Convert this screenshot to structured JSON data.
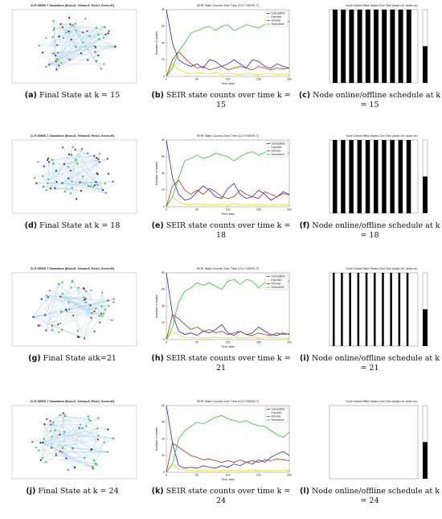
{
  "panels": [
    {
      "label": "(a)",
      "caption": "Final State at k = 15",
      "chart": {
        "type": "network",
        "title": "CLP-SEIRS-T Simulation (Blue=S, Yellow=E, Red=I, Green=R)"
      }
    },
    {
      "label": "(b)",
      "caption": "SEIR state counts over time k = 15",
      "chart": {
        "type": "line",
        "title": "SEIR State Counts Over Time (CLP-SEIRS-T)",
        "x_label": "Time step",
        "y_label": "Number of nodes",
        "x": [
          0,
          10,
          20,
          30,
          40,
          50,
          60,
          70,
          80,
          90,
          100,
          110,
          120,
          130,
          140,
          150,
          160,
          170,
          180,
          190,
          200
        ],
        "xlim": [
          0,
          200
        ],
        "xticks": [
          0,
          50,
          100,
          150,
          200
        ],
        "ylim": [
          0,
          80
        ],
        "yticks": [
          0,
          20,
          40,
          60,
          80
        ],
        "series": [
          {
            "name": "Susceptible",
            "color": "#1f1fe0",
            "values": [
              80,
              40,
              20,
              15,
              12,
              15,
              10,
              20,
              18,
              12,
              15,
              20,
              15,
              10,
              20,
              18,
              12,
              10,
              15,
              12,
              10
            ]
          },
          {
            "name": "Exposed",
            "color": "#e8e000",
            "values": [
              0,
              15,
              8,
              5,
              3,
              5,
              4,
              3,
              5,
              2,
              4,
              3,
              2,
              4,
              3,
              2,
              3,
              4,
              2,
              3,
              2
            ]
          },
          {
            "name": "Infected",
            "color": "#b03010",
            "values": [
              0,
              20,
              30,
              22,
              15,
              10,
              12,
              8,
              10,
              12,
              8,
              10,
              12,
              10,
              8,
              12,
              10,
              8,
              10,
              9,
              10
            ]
          },
          {
            "name": "Recovered",
            "color": "#22c822",
            "values": [
              0,
              10,
              30,
              40,
              52,
              55,
              58,
              60,
              55,
              60,
              62,
              55,
              58,
              62,
              60,
              58,
              62,
              66,
              62,
              64,
              66
            ]
          }
        ]
      }
    },
    {
      "label": "(c)",
      "caption": "Node online/offline schedule at k = 15",
      "chart": {
        "type": "schedule",
        "title": "Node Online/Offline States Over Time (black=off, white=on)"
      }
    },
    {
      "label": "(d)",
      "caption": "Final State at k = 18",
      "chart": {
        "type": "network",
        "title": "CLP-SEIRS-T Simulation (Blue=S, Yellow=E, Red=I, Green=R)"
      }
    },
    {
      "label": "(e)",
      "caption": "SEIR state counts over time k = 18",
      "chart": {
        "type": "line",
        "title": "SEIR State Counts Over Time (CLP-SEIRS-T)",
        "x_label": "Time step",
        "y_label": "Number of nodes",
        "x": [
          0,
          10,
          20,
          30,
          40,
          50,
          60,
          70,
          80,
          90,
          100,
          110,
          120,
          130,
          140,
          150,
          160,
          170,
          180,
          190,
          200
        ],
        "xlim": [
          0,
          200
        ],
        "xticks": [
          0,
          50,
          100,
          150,
          200
        ],
        "ylim": [
          0,
          80
        ],
        "yticks": [
          0,
          20,
          40,
          60,
          80
        ],
        "series": [
          {
            "name": "Susceptible",
            "color": "#1f1fe0",
            "values": [
              80,
              35,
              15,
              8,
              10,
              18,
              25,
              20,
              12,
              10,
              22,
              28,
              15,
              10,
              12,
              20,
              15,
              8,
              12,
              18,
              15
            ]
          },
          {
            "name": "Exposed",
            "color": "#e8e000",
            "values": [
              0,
              12,
              6,
              3,
              2,
              4,
              2,
              3,
              2,
              3,
              2,
              4,
              2,
              3,
              2,
              3,
              2,
              2,
              3,
              2,
              3
            ]
          },
          {
            "name": "Infected",
            "color": "#b03010",
            "values": [
              0,
              25,
              32,
              20,
              15,
              20,
              15,
              22,
              18,
              12,
              10,
              12,
              20,
              15,
              12,
              10,
              18,
              15,
              12,
              16,
              14
            ]
          },
          {
            "name": "Recovered",
            "color": "#22c822",
            "values": [
              0,
              12,
              35,
              55,
              58,
              62,
              58,
              60,
              64,
              62,
              60,
              55,
              60,
              64,
              66,
              62,
              65,
              68,
              66,
              62,
              64
            ]
          }
        ]
      }
    },
    {
      "label": "(f)",
      "caption": "Node online/offline schedule at k = 18",
      "chart": {
        "type": "schedule",
        "title": "Node Online/Offline States Over Time (black=off, white=on)"
      }
    },
    {
      "label": "(g)",
      "caption": "Final State atk=21",
      "chart": {
        "type": "network",
        "title": "CLP-SEIRS-T Simulation (Blue=S, Yellow=E, Red=I, Green=R)"
      }
    },
    {
      "label": "(h)",
      "caption": "SEIR state counts over time k = 21",
      "chart": {
        "type": "line",
        "title": "SEIR State Counts Over Time (CLP-SEIRS-T)",
        "x_label": "Time step",
        "y_label": "Number of nodes",
        "x": [
          0,
          10,
          20,
          30,
          40,
          50,
          60,
          70,
          80,
          90,
          100,
          110,
          120,
          130,
          140,
          150,
          160,
          170,
          180,
          190,
          200
        ],
        "xlim": [
          0,
          200
        ],
        "xticks": [
          0,
          50,
          100,
          150,
          200
        ],
        "ylim": [
          0,
          80
        ],
        "yticks": [
          0,
          20,
          40,
          60,
          80
        ],
        "series": [
          {
            "name": "Susceptible",
            "color": "#1f1fe0",
            "values": [
              80,
              30,
              10,
              6,
              8,
              5,
              10,
              8,
              12,
              18,
              8,
              5,
              10,
              6,
              8,
              15,
              10,
              6,
              5,
              8,
              6
            ]
          },
          {
            "name": "Exposed",
            "color": "#e8e000",
            "values": [
              0,
              10,
              5,
              3,
              2,
              3,
              2,
              2,
              3,
              2,
              2,
              3,
              2,
              2,
              3,
              2,
              2,
              3,
              2,
              2,
              2
            ]
          },
          {
            "name": "Infected",
            "color": "#b03010",
            "values": [
              0,
              30,
              25,
              18,
              12,
              15,
              10,
              12,
              8,
              10,
              6,
              8,
              10,
              6,
              5,
              8,
              6,
              5,
              8,
              6,
              7
            ]
          },
          {
            "name": "Recovered",
            "color": "#22c822",
            "values": [
              0,
              15,
              45,
              58,
              62,
              68,
              65,
              68,
              64,
              60,
              70,
              72,
              66,
              72,
              70,
              62,
              68,
              72,
              70,
              68,
              70
            ]
          }
        ]
      }
    },
    {
      "label": "(i)",
      "caption": "Node online/offline schedule at k = 21",
      "chart": {
        "type": "schedule",
        "title": "Node Online/Offline States Over Time (black=off, white=on)"
      }
    },
    {
      "label": "(j)",
      "caption": "Final State at k = 24",
      "chart": {
        "type": "network",
        "title": "CLP-SEIRS-T Simulation (Blue=S, Yellow=E, Red=I, Green=R)"
      }
    },
    {
      "label": "(k)",
      "caption": "SEIR state counts over time k = 24",
      "chart": {
        "type": "line",
        "title": "SEIR State Counts Over Time (CLP-SEIRS-T)",
        "x_label": "Time step",
        "y_label": "Number of nodes",
        "x": [
          0,
          10,
          20,
          30,
          40,
          50,
          60,
          70,
          80,
          90,
          100,
          110,
          120,
          130,
          140,
          150,
          160,
          170,
          180,
          190,
          200
        ],
        "xlim": [
          0,
          200
        ],
        "xticks": [
          0,
          50,
          100,
          150,
          200
        ],
        "ylim": [
          0,
          80
        ],
        "yticks": [
          0,
          20,
          40,
          60,
          80
        ],
        "series": [
          {
            "name": "Susceptible",
            "color": "#1f1fe0",
            "values": [
              80,
              35,
              8,
              5,
              6,
              5,
              8,
              6,
              5,
              8,
              6,
              10,
              8,
              12,
              10,
              15,
              12,
              18,
              22,
              25,
              20
            ]
          },
          {
            "name": "Exposed",
            "color": "#e8e000",
            "values": [
              0,
              10,
              4,
              3,
              2,
              2,
              3,
              2,
              2,
              2,
              3,
              2,
              2,
              2,
              3,
              2,
              2,
              2,
              2,
              3,
              2
            ]
          },
          {
            "name": "Infected",
            "color": "#b03010",
            "values": [
              0,
              35,
              30,
              25,
              20,
              18,
              15,
              16,
              14,
              12,
              14,
              12,
              15,
              12,
              14,
              12,
              15,
              14,
              16,
              15,
              14
            ]
          },
          {
            "name": "Recovered",
            "color": "#22c822",
            "values": [
              0,
              10,
              40,
              50,
              55,
              60,
              58,
              62,
              66,
              68,
              64,
              62,
              60,
              62,
              58,
              56,
              55,
              50,
              45,
              42,
              48
            ]
          }
        ]
      }
    },
    {
      "label": "(l)",
      "caption": "Node online/offline schedule at k = 24",
      "chart": {
        "type": "schedule",
        "title": "Node Online/Offline States Over Time (black=off, white=on)"
      }
    }
  ]
}
